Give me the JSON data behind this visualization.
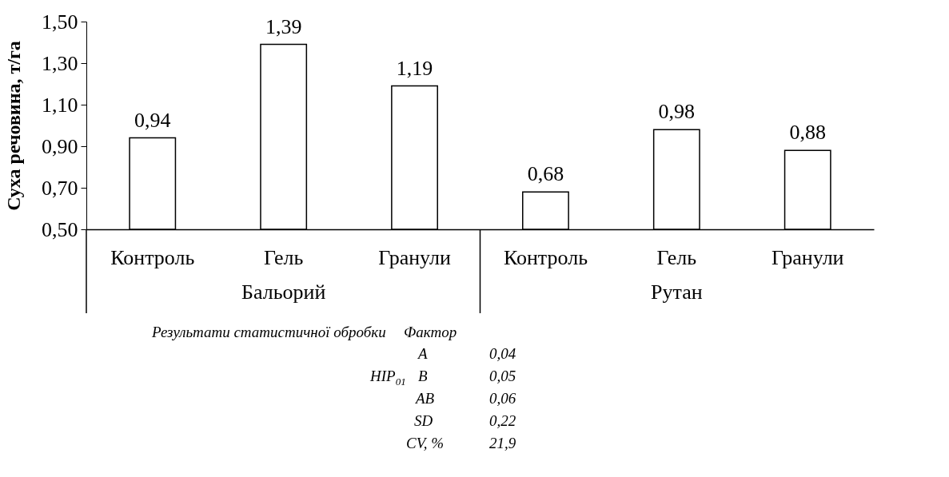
{
  "chart_data": {
    "type": "bar",
    "ylabel": "Суха речовина, т/га",
    "categories": [
      "Контроль",
      "Гель",
      "Гранули",
      "Контроль",
      "Гель",
      "Гранули"
    ],
    "values": [
      0.94,
      1.39,
      1.19,
      0.68,
      0.98,
      0.88
    ],
    "value_labels": [
      "0,94",
      "1,39",
      "1,19",
      "0,68",
      "0,98",
      "0,88"
    ],
    "color": "#ffffff",
    "ylim": [
      0.5,
      1.5
    ],
    "yticks": [
      {
        "value": 0.5,
        "label": "0,50"
      },
      {
        "value": 0.7,
        "label": "0,70"
      },
      {
        "value": 0.9,
        "label": "0,90"
      },
      {
        "value": 1.1,
        "label": "1,10"
      },
      {
        "value": 1.3,
        "label": "1,30"
      },
      {
        "value": 1.5,
        "label": "1,50"
      }
    ],
    "grid": false,
    "annotations": [
      "Бальорий",
      "Рутан",
      "Результати статистичної обробки",
      "Фактор",
      "НІР$_{01}$",
      "А",
      "0,04",
      "В",
      "0,05",
      "АВ",
      "0,06",
      "SD",
      "0,22",
      "CV, %",
      "21,9"
    ]
  }
}
